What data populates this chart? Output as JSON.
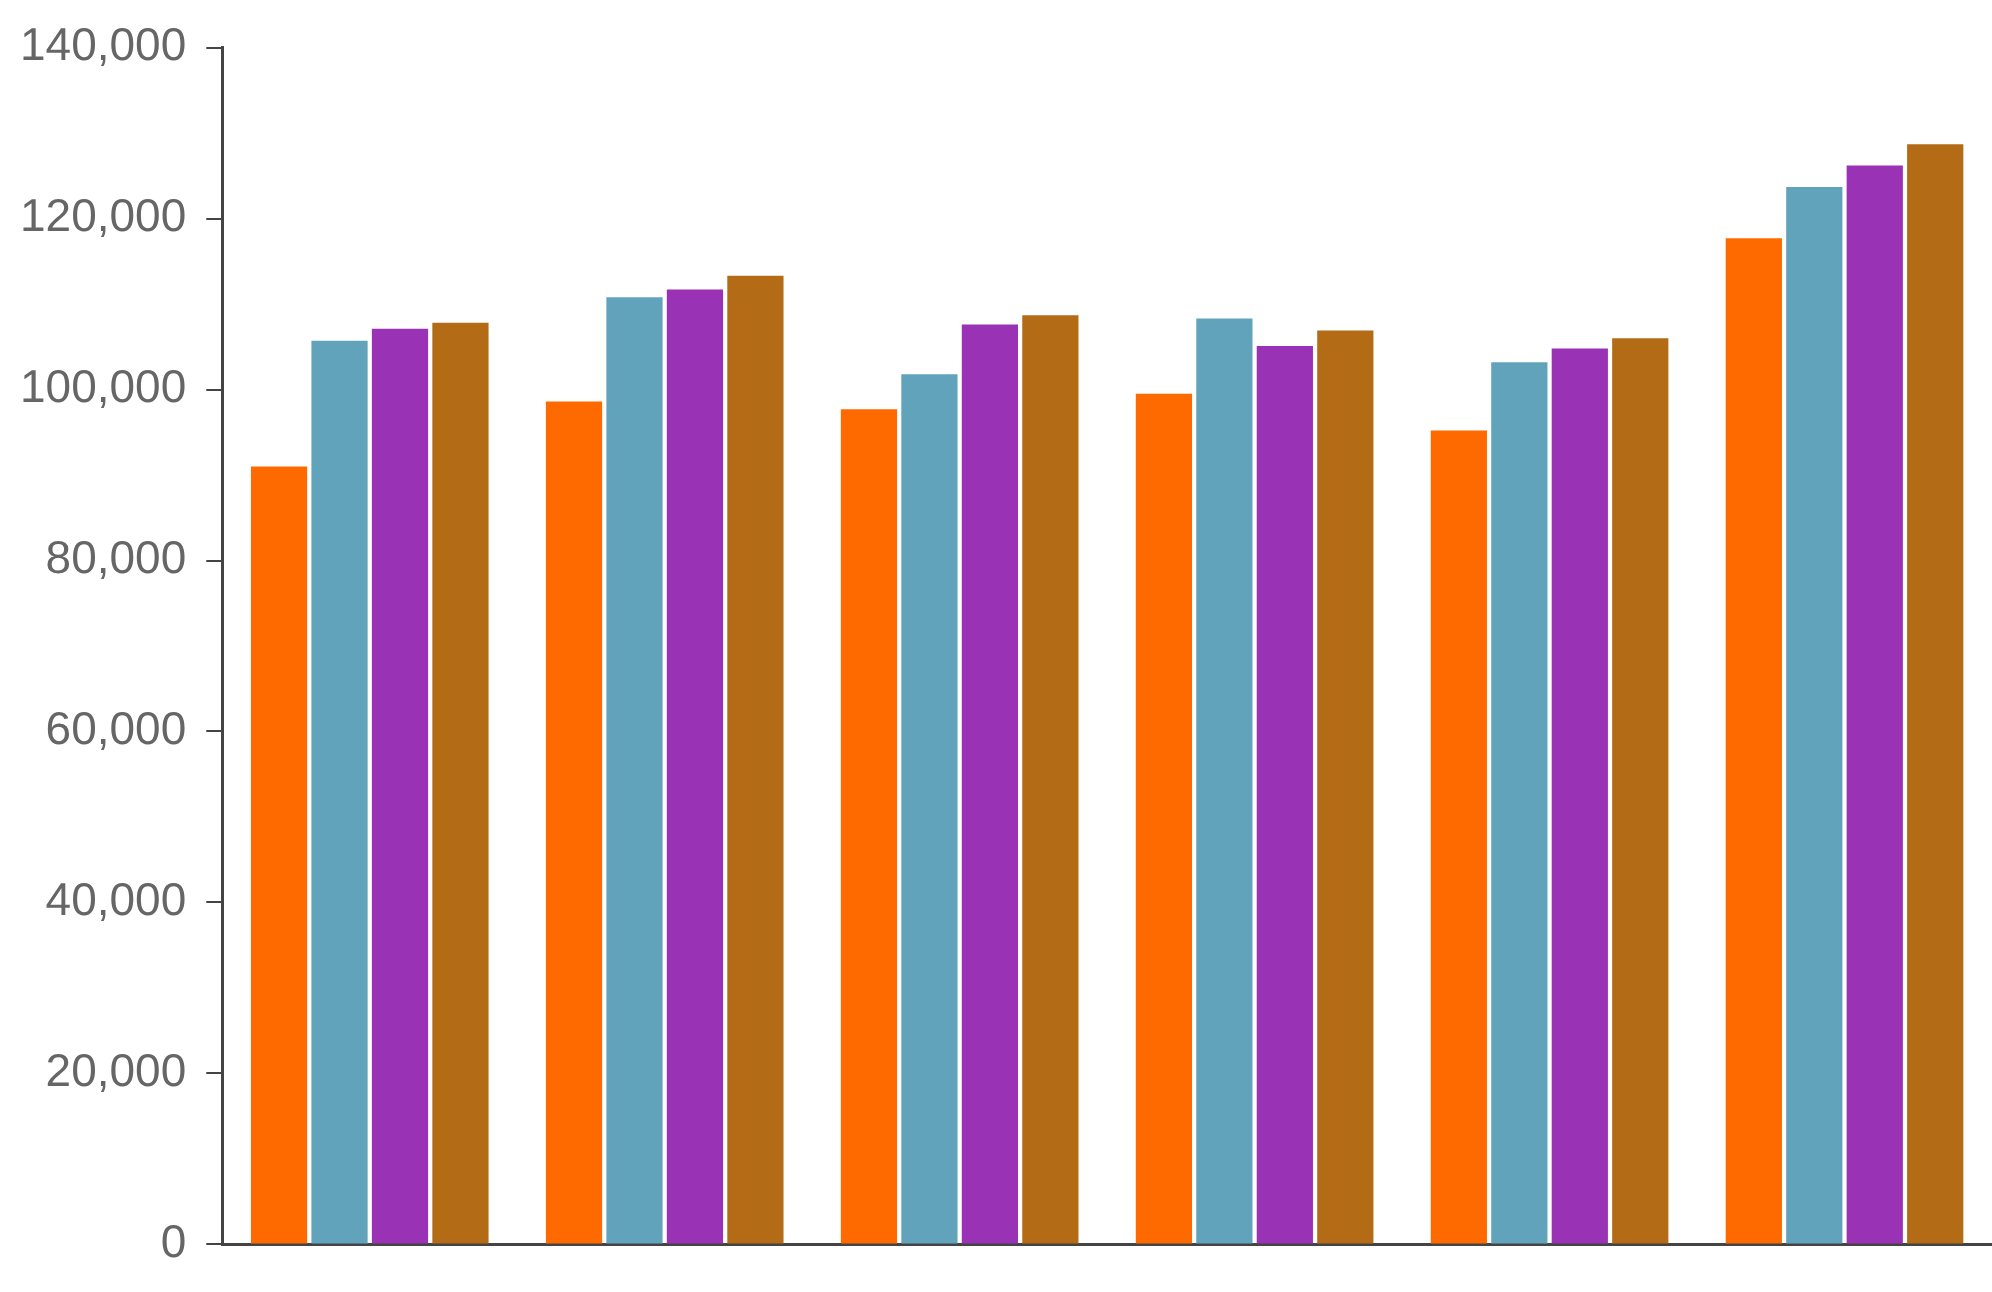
{
  "chart_data": {
    "type": "bar",
    "categories": [
      null,
      null,
      null,
      null,
      null,
      null
    ],
    "series": [
      {
        "color": "#ff6a00",
        "values": [
          91000,
          98600,
          97700,
          99500,
          95200,
          117700
        ]
      },
      {
        "color": "#62a3bc",
        "values": [
          105700,
          110800,
          101800,
          108300,
          103200,
          123700
        ]
      },
      {
        "color": "#9932b4",
        "values": [
          107100,
          111700,
          107600,
          105100,
          104800,
          126200
        ]
      },
      {
        "color": "#b36b16",
        "values": [
          107800,
          113300,
          108700,
          106900,
          106000,
          128700
        ]
      }
    ],
    "ylim": [
      0,
      140000
    ],
    "yticks": [
      0,
      {
        "value": 20000,
        "label": "20,000"
      },
      {
        "value": 40000,
        "label": "40,000"
      },
      {
        "value": 60000,
        "label": "60,000"
      },
      {
        "value": 80000,
        "label": "80,000"
      },
      {
        "value": 100000,
        "label": "100,000"
      },
      {
        "value": 120000,
        "label": "120,000"
      },
      {
        "value": 140000,
        "label": "140,000"
      }
    ],
    "grid": false,
    "legend": false
  }
}
